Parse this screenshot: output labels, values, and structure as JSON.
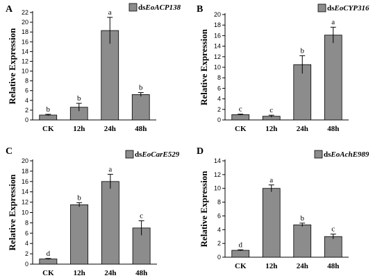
{
  "chart_data": [
    {
      "type": "bar",
      "panel": "A",
      "legend": {
        "prefix": "ds",
        "gene": "EoACP138"
      },
      "ylabel": "Relative Expression",
      "categories": [
        "CK",
        "12h",
        "24h",
        "48h"
      ],
      "values": [
        1.0,
        2.6,
        18.3,
        5.2
      ],
      "errors": [
        0.15,
        0.8,
        2.7,
        0.4
      ],
      "significance": [
        "b",
        "b",
        "a",
        "b"
      ],
      "ylim": [
        0,
        22
      ],
      "yticks": [
        0,
        2,
        4,
        6,
        8,
        10,
        12,
        14,
        16,
        18,
        20,
        22
      ]
    },
    {
      "type": "bar",
      "panel": "B",
      "legend": {
        "prefix": "ds",
        "gene": "EoCYP316"
      },
      "ylabel": "Relative Expression",
      "categories": [
        "CK",
        "12h",
        "24h",
        "48h"
      ],
      "values": [
        1.0,
        0.7,
        10.5,
        16.1
      ],
      "errors": [
        0.1,
        0.2,
        1.7,
        1.5
      ],
      "significance": [
        "c",
        "c",
        "b",
        "a"
      ],
      "ylim": [
        0,
        20
      ],
      "yticks": [
        0,
        2,
        4,
        6,
        8,
        10,
        12,
        14,
        16,
        18,
        20
      ]
    },
    {
      "type": "bar",
      "panel": "C",
      "legend": {
        "prefix": "ds",
        "gene": "EoCarE529"
      },
      "ylabel": "Relative Expression",
      "categories": [
        "CK",
        "12h",
        "24h",
        "48h"
      ],
      "values": [
        1.0,
        11.5,
        16.0,
        7.0
      ],
      "errors": [
        0.1,
        0.4,
        1.4,
        1.4
      ],
      "significance": [
        "d",
        "b",
        "a",
        "c"
      ],
      "ylim": [
        0,
        20
      ],
      "yticks": [
        0,
        2,
        4,
        6,
        8,
        10,
        12,
        14,
        16,
        18,
        20
      ]
    },
    {
      "type": "bar",
      "panel": "D",
      "legend": {
        "prefix": "ds",
        "gene": "EoAchE989"
      },
      "ylabel": "Relative Expression",
      "categories": [
        "CK",
        "12h",
        "24h",
        "48h"
      ],
      "values": [
        1.0,
        10.0,
        4.7,
        3.0
      ],
      "errors": [
        0.08,
        0.5,
        0.25,
        0.35
      ],
      "significance": [
        "d",
        "a",
        "b",
        "c"
      ],
      "ylim": [
        0,
        14
      ],
      "yticks": [
        0,
        2,
        4,
        6,
        8,
        10,
        12,
        14
      ]
    }
  ],
  "colors": {
    "bar": "#8c8c8c",
    "axis": "#000000"
  }
}
